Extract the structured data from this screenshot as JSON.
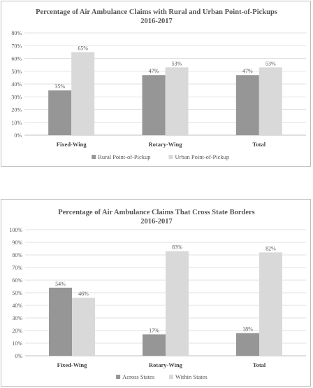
{
  "chart_data": [
    {
      "type": "bar",
      "title": "Percentage of Air Ambulance Claims with Rural and Urban Point-of-Pickups",
      "subtitle": "2016-2017",
      "categories": [
        "Fixed-Wing",
        "Rotary-Wing",
        "Total"
      ],
      "series": [
        {
          "name": "Rural Point-of-Pickup",
          "values": [
            35,
            47,
            47
          ],
          "labels": [
            "35%",
            "47%",
            "47%"
          ],
          "color": "#969696"
        },
        {
          "name": "Urban Point-of-Pickup",
          "values": [
            65,
            53,
            53
          ],
          "labels": [
            "65%",
            "53%",
            "53%"
          ],
          "color": "#d9d9d9"
        }
      ],
      "ylim": [
        0,
        80
      ],
      "yticks": [
        0,
        10,
        20,
        30,
        40,
        50,
        60,
        70,
        80
      ],
      "ytick_labels": [
        "0%",
        "10%",
        "20%",
        "30%",
        "40%",
        "50%",
        "60%",
        "70%",
        "80%"
      ],
      "grid": true,
      "legend": "bottom"
    },
    {
      "type": "bar",
      "title": "Percentage of Air Ambulance Claims That Cross State Borders",
      "subtitle": "2016-2017",
      "categories": [
        "Fixed-Wing",
        "Rotary-Wing",
        "Total"
      ],
      "series": [
        {
          "name": "Across States",
          "values": [
            54,
            17,
            18
          ],
          "labels": [
            "54%",
            "17%",
            "18%"
          ],
          "color": "#969696"
        },
        {
          "name": "Within States",
          "values": [
            46,
            83,
            82
          ],
          "labels": [
            "46%",
            "83%",
            "82%"
          ],
          "color": "#d9d9d9"
        }
      ],
      "ylim": [
        0,
        100
      ],
      "yticks": [
        0,
        10,
        20,
        30,
        40,
        50,
        60,
        70,
        80,
        90,
        100
      ],
      "ytick_labels": [
        "0%",
        "10%",
        "20%",
        "30%",
        "40%",
        "50%",
        "60%",
        "70%",
        "80%",
        "90%",
        "100%"
      ],
      "grid": true,
      "legend": "bottom"
    }
  ]
}
